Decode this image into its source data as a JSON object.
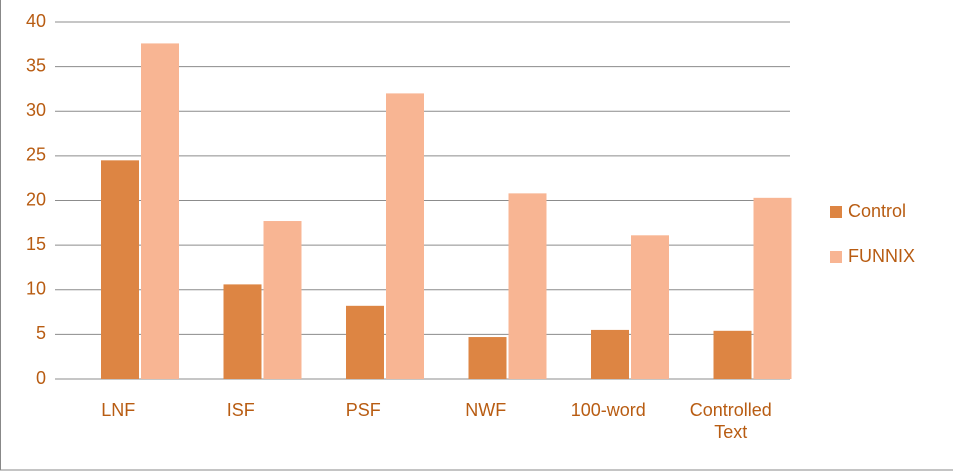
{
  "chart_data": {
    "type": "bar",
    "categories": [
      "LNF",
      "ISF",
      "PSF",
      "NWF",
      "100-word",
      "Controlled Text"
    ],
    "series": [
      {
        "name": "Control",
        "color": "#dd8543",
        "values": [
          24.5,
          10.6,
          8.2,
          4.7,
          5.5,
          5.4
        ]
      },
      {
        "name": "FUNNIX",
        "color": "#f8b593",
        "values": [
          37.6,
          17.7,
          32.0,
          20.8,
          16.1,
          20.3
        ]
      }
    ],
    "ylim": [
      0,
      40
    ],
    "yticks": [
      0,
      5,
      10,
      15,
      20,
      25,
      30,
      35,
      40
    ],
    "grid": true,
    "legend": "right"
  }
}
